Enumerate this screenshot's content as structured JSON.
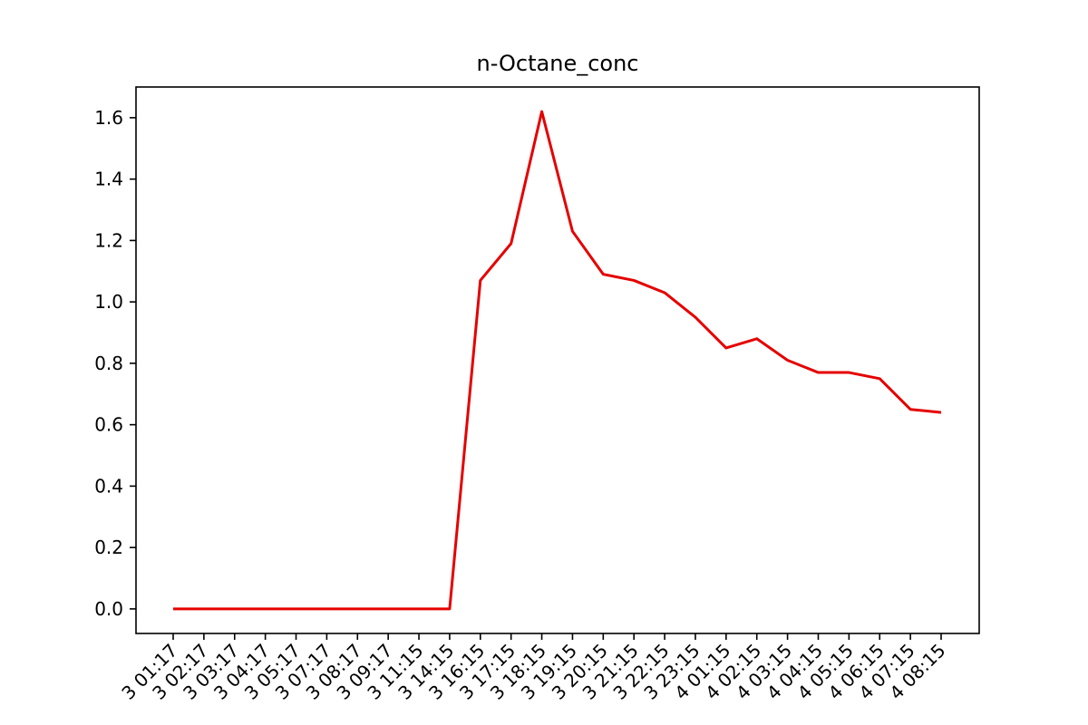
{
  "chart_data": {
    "type": "line",
    "title": "n-Octane_conc",
    "xlabel": "",
    "ylabel": "",
    "categories": [
      "3 01:17",
      "3 02:17",
      "3 03:17",
      "3 04:17",
      "3 05:17",
      "3 07:17",
      "3 08:17",
      "3 09:17",
      "3 11:15",
      "3 14:15",
      "3 16:15",
      "3 17:15",
      "3 18:15",
      "3 19:15",
      "3 20:15",
      "3 21:15",
      "3 22:15",
      "3 23:15",
      "4 01:15",
      "4 02:15",
      "4 03:15",
      "4 04:15",
      "4 05:15",
      "4 06:15",
      "4 07:15",
      "4 08:15"
    ],
    "series": [
      {
        "color": "#e50000",
        "values": [
          0.0,
          0.0,
          0.0,
          0.0,
          0.0,
          0.0,
          0.0,
          0.0,
          0.0,
          0.0,
          1.07,
          1.19,
          1.62,
          1.23,
          1.09,
          1.07,
          1.03,
          0.95,
          0.85,
          0.88,
          0.81,
          0.77,
          0.77,
          0.75,
          0.65,
          0.64
        ]
      }
    ],
    "ylim": [
      -0.08,
      1.7
    ],
    "yticks": [
      "0.0",
      "0.2",
      "0.4",
      "0.6",
      "0.8",
      "1.0",
      "1.2",
      "1.4",
      "1.6"
    ],
    "grid": false,
    "legend": "none"
  }
}
